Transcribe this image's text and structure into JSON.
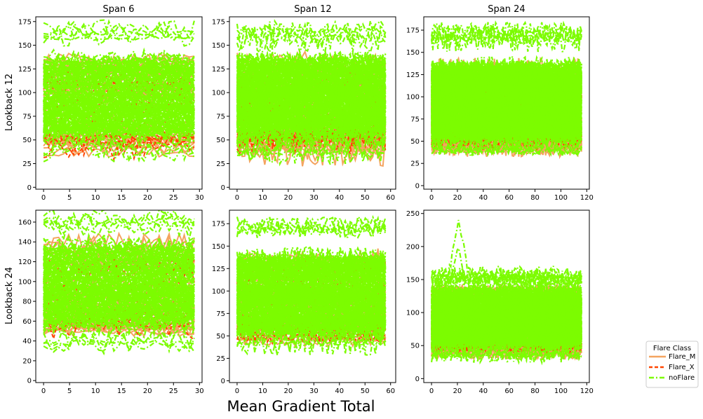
{
  "figure": {
    "xlabel": "Mean Gradient Total",
    "legend": {
      "title": "Flare Class",
      "placement": "right",
      "entries": [
        {
          "name": "Flare_M",
          "color": "#f4a460",
          "style": "solid"
        },
        {
          "name": "Flare_X",
          "color": "#ff4500",
          "style": "dashed"
        },
        {
          "name": "noFlare",
          "color": "#7cfc00",
          "style": "dashdot"
        }
      ]
    },
    "row_labels": [
      "Lookback 12",
      "Lookback 24"
    ],
    "col_titles": [
      "Span 6",
      "Span 12",
      "Span 24"
    ]
  },
  "chart_data": [
    {
      "type": "line",
      "row": "Lookback 12",
      "col": "Span 6",
      "xlim": [
        -1.5,
        30.5
      ],
      "ylim": [
        -2,
        180
      ],
      "xticks": [
        0,
        5,
        10,
        15,
        20,
        25,
        30
      ],
      "yticks": [
        0,
        25,
        50,
        75,
        100,
        125,
        150,
        175
      ],
      "bands": {
        "noFlare": [
          38,
          175
        ],
        "Flare_M": [
          32,
          145
        ],
        "Flare_X": [
          38,
          130
        ]
      },
      "grid": false
    },
    {
      "type": "line",
      "row": "Lookback 12",
      "col": "Span 12",
      "xlim": [
        -3,
        62
      ],
      "ylim": [
        -2,
        180
      ],
      "xticks": [
        0,
        10,
        20,
        30,
        40,
        50,
        60
      ],
      "yticks": [
        0,
        25,
        50,
        75,
        100,
        125,
        150,
        175
      ],
      "bands": {
        "noFlare": [
          35,
          173
        ],
        "Flare_M": [
          33,
          140
        ],
        "Flare_X": [
          40,
          128
        ]
      },
      "grid": false
    },
    {
      "type": "line",
      "row": "Lookback 12",
      "col": "Span 24",
      "xlim": [
        -6,
        122
      ],
      "ylim": [
        -4,
        190
      ],
      "xticks": [
        0,
        20,
        40,
        60,
        80,
        100,
        120
      ],
      "yticks": [
        0,
        25,
        50,
        75,
        100,
        125,
        150,
        175
      ],
      "bands": {
        "noFlare": [
          35,
          182
        ],
        "Flare_M": [
          38,
          140
        ],
        "Flare_X": [
          42,
          125
        ]
      },
      "grid": false
    },
    {
      "type": "line",
      "row": "Lookback 24",
      "col": "Span 6",
      "xlim": [
        -1.5,
        30.5
      ],
      "ylim": [
        -2,
        172
      ],
      "xticks": [
        0,
        5,
        10,
        15,
        20,
        25,
        30
      ],
      "yticks": [
        0,
        20,
        40,
        60,
        80,
        100,
        120,
        140,
        160
      ],
      "bands": {
        "noFlare": [
          36,
          168
        ],
        "Flare_M": [
          40,
          145
        ],
        "Flare_X": [
          50,
          130
        ]
      },
      "grid": false
    },
    {
      "type": "line",
      "row": "Lookback 24",
      "col": "Span 12",
      "xlim": [
        -3,
        62
      ],
      "ylim": [
        -2,
        190
      ],
      "xticks": [
        0,
        10,
        20,
        30,
        40,
        50,
        60
      ],
      "yticks": [
        0,
        25,
        50,
        75,
        100,
        125,
        150,
        175
      ],
      "bands": {
        "noFlare": [
          38,
          183
        ],
        "Flare_M": [
          40,
          140
        ],
        "Flare_X": [
          43,
          128
        ]
      },
      "grid": false
    },
    {
      "type": "line",
      "row": "Lookback 24",
      "col": "Span 24",
      "xlim": [
        -6,
        122
      ],
      "ylim": [
        -6,
        255
      ],
      "xticks": [
        0,
        20,
        40,
        60,
        80,
        100,
        120
      ],
      "yticks": [
        0,
        50,
        100,
        150,
        200,
        250
      ],
      "bands": {
        "noFlare": [
          33,
          243
        ],
        "Flare_M": [
          33,
          145
        ],
        "Flare_X": [
          40,
          125
        ]
      },
      "peak": {
        "series": "noFlare",
        "x_start": 12,
        "x_end": 30,
        "y_max": 243
      },
      "grid": false
    }
  ]
}
